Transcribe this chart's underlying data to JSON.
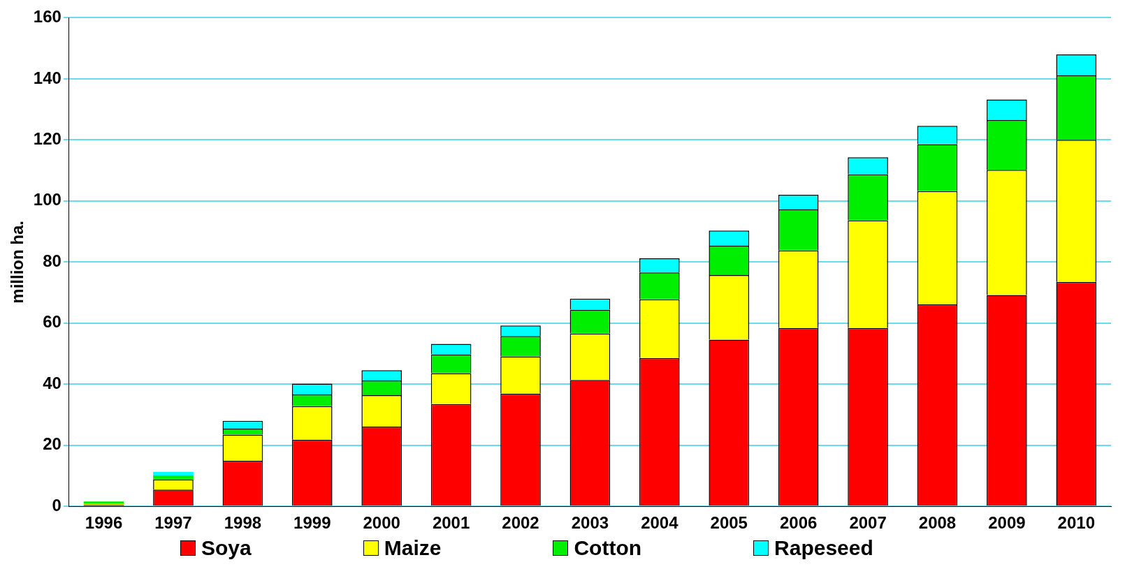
{
  "chart_data": {
    "type": "bar",
    "stacked": true,
    "ylabel": "million ha.",
    "categories": [
      "1996",
      "1997",
      "1998",
      "1999",
      "2000",
      "2001",
      "2002",
      "2003",
      "2004",
      "2005",
      "2006",
      "2007",
      "2008",
      "2009",
      "2010"
    ],
    "series": [
      {
        "name": "Soya",
        "color": "#ff0000",
        "values": [
          0.5,
          5.5,
          14.9,
          21.8,
          26.1,
          33.5,
          36.9,
          41.4,
          48.6,
          54.6,
          58.4,
          58.4,
          66.1,
          69.2,
          73.5
        ]
      },
      {
        "name": "Maize",
        "color": "#ffff00",
        "values": [
          0.3,
          3.3,
          8.6,
          11.0,
          10.3,
          10.1,
          12.2,
          15.2,
          19.2,
          21.1,
          25.4,
          35.3,
          37.1,
          41.0,
          46.5
        ]
      },
      {
        "name": "Cotton",
        "color": "#00ee00",
        "values": [
          0.8,
          1.3,
          1.9,
          3.8,
          4.8,
          6.2,
          6.7,
          7.8,
          8.8,
          9.6,
          13.4,
          15.0,
          15.4,
          16.3,
          21.1
        ]
      },
      {
        "name": "Rapeseed",
        "color": "#00ffff",
        "values": [
          null,
          1.2,
          2.6,
          3.6,
          3.4,
          3.4,
          3.4,
          3.6,
          4.6,
          5.0,
          4.8,
          5.6,
          6.0,
          6.7,
          6.9
        ]
      }
    ],
    "ylim": [
      0,
      160
    ],
    "yticks": [
      0,
      20,
      40,
      60,
      80,
      100,
      120,
      140,
      160
    ],
    "grid": "y",
    "legend": "bottom"
  }
}
